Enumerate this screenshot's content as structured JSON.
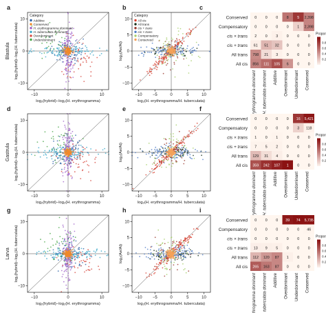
{
  "colors": {
    "Additive": "#2f64a8",
    "Conserved": "#f08a2b",
    "H. erythrogramma dominant": "#a062c9",
    "H. tuberculata dominant": "#3aa7c9",
    "Overdominant": "#d7483f",
    "Underdominant": "#4aa64a",
    "All cis": "#d8402f",
    "All trans": "#17301a",
    "cis + trans": "#9a3a2f",
    "cis × trans": "#4e7bc4",
    "Compensatory": "#a6cf6b",
    "Conserved_reg": "#f5a259",
    "heat_low": "#fff6ef",
    "heat_high": "#8b1212"
  },
  "stages": [
    {
      "label": "Blastula",
      "letters": [
        "a",
        "b",
        "c"
      ]
    },
    {
      "label": "Gastrula",
      "letters": [
        "d",
        "e",
        "f"
      ]
    },
    {
      "label": "Larva",
      "letters": [
        "g",
        "h",
        "i"
      ]
    }
  ],
  "axes": {
    "inheritance_x": "log₂(hybrid)−log₂(H. erythrogramma)",
    "inheritance_y": "log₂(hybrid)−log₂(H. tuberculata)",
    "regulatory_x": "log₂(H. erythrogramma/H. tuberculata)",
    "regulatory_y": "log₂(Ae/At)"
  },
  "legends": {
    "title": "Category",
    "inheritance": [
      "Additive",
      "Conserved",
      "H. erythrogramma dominant",
      "H. tuberculata dominant",
      "Overdominant",
      "Underdominant"
    ],
    "regulatory": [
      "All cis",
      "All trans",
      "cis + trans",
      "cis × trans",
      "Compensatory",
      "Conserved"
    ]
  },
  "heatmap_legend": {
    "title": "Proportion",
    "ticks": [
      "0.8",
      "0.6",
      "0.4",
      "0.2"
    ]
  },
  "chart_data": [
    {
      "panel": "a",
      "type": "scatter",
      "stage": "Blastula",
      "xlabel": "log₂(hybrid)−log₂(H. erythrogramma)",
      "ylabel": "log₂(hybrid)−log₂(H. tuberculata)",
      "xlim": [
        -12,
        12
      ],
      "ylim": [
        -12,
        12
      ],
      "xticks": [
        -10,
        0,
        10
      ],
      "yticks": [
        -10,
        0,
        10
      ],
      "legend": "top-left"
    },
    {
      "panel": "b",
      "type": "scatter",
      "stage": "Blastula",
      "xlabel": "log₂(H. erythrogramma/H. tuberculata)",
      "ylabel": "log₂(Ae/At)",
      "xlim": [
        -12,
        12
      ],
      "ylim": [
        -12,
        12
      ],
      "xticks": [
        -10,
        -5,
        0,
        5,
        10
      ],
      "yticks": [
        -10,
        -5,
        0,
        5,
        10
      ],
      "legend": "top-left"
    },
    {
      "panel": "c",
      "type": "heatmap",
      "stage": "Blastula",
      "rows": [
        "Conserved",
        "Compensatory",
        "cis × trans",
        "cis + trans",
        "All trans",
        "All cis"
      ],
      "columns": [
        "H. erythrogramma dominant",
        "H. tuberculata dominant",
        "Additive",
        "Overdominant",
        "Underdominant",
        "Conserved"
      ],
      "values": [
        [
          0,
          0,
          0,
          8,
          5,
          2398
        ],
        [
          0,
          0,
          0,
          0,
          1,
          2398
        ],
        [
          2,
          0,
          3,
          0,
          0,
          0
        ],
        [
          61,
          51,
          32,
          0,
          0,
          0
        ],
        [
          798,
          21,
          3,
          0,
          0,
          0
        ],
        [
          856,
          111,
          105,
          6,
          0,
          0
        ]
      ],
      "legend": "right"
    },
    {
      "panel": "d",
      "type": "scatter",
      "stage": "Gastrula",
      "xlabel": "log₂(hybrid)−log₂(H. erythrogramma)",
      "ylabel": "log₂(hybrid)−log₂(H. tuberculata)",
      "xlim": [
        -12,
        12
      ],
      "ylim": [
        -12,
        12
      ],
      "xticks": [
        -10,
        0,
        10
      ],
      "yticks": [
        -10,
        0,
        10
      ]
    },
    {
      "panel": "e",
      "type": "scatter",
      "stage": "Gastrula",
      "xlabel": "log₂(H. erythrogramma/H. tuberculata)",
      "ylabel": "log₂(Ae/At)",
      "xlim": [
        -12,
        12
      ],
      "ylim": [
        -12,
        12
      ],
      "xticks": [
        -10,
        -5,
        0,
        5,
        10
      ],
      "yticks": [
        -10,
        -5,
        0,
        5,
        10
      ]
    },
    {
      "panel": "f",
      "type": "heatmap",
      "stage": "Gastrula",
      "rows": [
        "Conserved",
        "Compensatory",
        "cis × trans",
        "cis + trans",
        "All trans",
        "All cis"
      ],
      "columns": [
        "H. erythrogramma dominant",
        "H. tuberculata dominant",
        "Additive",
        "Overdominant",
        "Underdominant",
        "Conserved"
      ],
      "values": [
        [
          0,
          0,
          0,
          0,
          16,
          5421
        ],
        [
          0,
          0,
          0,
          0,
          3,
          118
        ],
        [
          1,
          0,
          1,
          0,
          0,
          0
        ],
        [
          7,
          5,
          2,
          0,
          0,
          0
        ],
        [
          129,
          31,
          4,
          0,
          0,
          0
        ],
        [
          359,
          242,
          107,
          1,
          0,
          0
        ]
      ],
      "legend": "right"
    },
    {
      "panel": "g",
      "type": "scatter",
      "stage": "Larva",
      "xlabel": "log₂(hybrid)−log₂(H. erythrogramma)",
      "ylabel": "log₂(hybrid)−log₂(H. tuberculata)",
      "xlim": [
        -12,
        12
      ],
      "ylim": [
        -12,
        12
      ],
      "xticks": [
        -10,
        0,
        10
      ],
      "yticks": [
        -10,
        0,
        10
      ]
    },
    {
      "panel": "h",
      "type": "scatter",
      "stage": "Larva",
      "xlabel": "log₂(H. erythrogramma/H. tuberculata)",
      "ylabel": "log₂(Ae/At)",
      "xlim": [
        -12,
        12
      ],
      "ylim": [
        -12,
        12
      ],
      "xticks": [
        -10,
        -5,
        0,
        5,
        10
      ],
      "yticks": [
        -10,
        -5,
        0,
        5,
        10
      ]
    },
    {
      "panel": "i",
      "type": "heatmap",
      "stage": "Larva",
      "rows": [
        "Conserved",
        "Compensatory",
        "cis × trans",
        "cis + trans",
        "All trans",
        "All cis"
      ],
      "columns": [
        "H. erythrogramma dominant",
        "H. tuberculata dominant",
        "Additive",
        "Overdominant",
        "Underdominant",
        "Conserved"
      ],
      "values": [
        [
          0,
          0,
          0,
          39,
          74,
          5735
        ],
        [
          0,
          0,
          0,
          0,
          0,
          46
        ],
        [
          0,
          0,
          0,
          0,
          0,
          0
        ],
        [
          13,
          9,
          5,
          0,
          0,
          0
        ],
        [
          112,
          120,
          87,
          1,
          0,
          0
        ],
        [
          265,
          163,
          87,
          0,
          0,
          0
        ]
      ],
      "legend": "right"
    }
  ]
}
